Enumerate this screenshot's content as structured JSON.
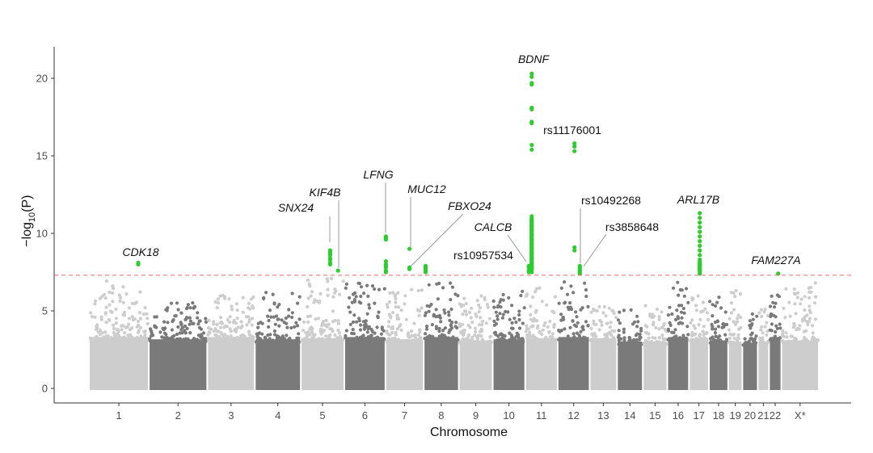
{
  "chart_data": {
    "type": "scatter",
    "subtype": "manhattan",
    "title": "",
    "xlabel": "Chromosome",
    "ylabel_main": "−log",
    "ylabel_sub": "10",
    "ylabel_tail": "(P)",
    "ylim": [
      0,
      21.5
    ],
    "yticks": [
      0,
      5,
      10,
      15,
      20
    ],
    "significance_threshold": 7.3,
    "colors": {
      "light": "#cdcdcd",
      "dark": "#7a7a7a",
      "highlight": "#2ecc2e",
      "threshold": "#ee6a6a",
      "axis": "#333333"
    },
    "chromosomes": [
      {
        "label": "1",
        "size": 249,
        "tone": "light",
        "base": 4.6,
        "max": 7.0
      },
      {
        "label": "2",
        "size": 243,
        "tone": "dark",
        "base": 4.4,
        "max": 5.6
      },
      {
        "label": "3",
        "size": 198,
        "tone": "light",
        "base": 4.6,
        "max": 6.0
      },
      {
        "label": "4",
        "size": 191,
        "tone": "dark",
        "base": 4.4,
        "max": 6.2
      },
      {
        "label": "5",
        "size": 181,
        "tone": "light",
        "base": 4.5,
        "max": 7.1
      },
      {
        "label": "6",
        "size": 171,
        "tone": "dark",
        "base": 4.6,
        "max": 6.8
      },
      {
        "label": "7",
        "size": 159,
        "tone": "light",
        "base": 4.4,
        "max": 6.5
      },
      {
        "label": "8",
        "size": 146,
        "tone": "dark",
        "base": 4.6,
        "max": 7.2
      },
      {
        "label": "9",
        "size": 141,
        "tone": "light",
        "base": 4.3,
        "max": 6.0
      },
      {
        "label": "10",
        "size": 135,
        "tone": "dark",
        "base": 4.4,
        "max": 6.4
      },
      {
        "label": "11",
        "size": 135,
        "tone": "light",
        "base": 4.5,
        "max": 6.6
      },
      {
        "label": "12",
        "size": 133,
        "tone": "dark",
        "base": 4.6,
        "max": 7.0
      },
      {
        "label": "13",
        "size": 114,
        "tone": "light",
        "base": 4.5,
        "max": 5.6
      },
      {
        "label": "14",
        "size": 107,
        "tone": "dark",
        "base": 4.2,
        "max": 5.2
      },
      {
        "label": "15",
        "size": 102,
        "tone": "light",
        "base": 4.2,
        "max": 5.4
      },
      {
        "label": "16",
        "size": 90,
        "tone": "dark",
        "base": 4.6,
        "max": 7.0
      },
      {
        "label": "17",
        "size": 83,
        "tone": "light",
        "base": 4.5,
        "max": 6.6
      },
      {
        "label": "18",
        "size": 80,
        "tone": "dark",
        "base": 4.3,
        "max": 6.0
      },
      {
        "label": "19",
        "size": 59,
        "tone": "light",
        "base": 4.2,
        "max": 6.8
      },
      {
        "label": "20",
        "size": 64,
        "tone": "dark",
        "base": 4.1,
        "max": 5.0
      },
      {
        "label": "21",
        "size": 47,
        "tone": "light",
        "base": 4.2,
        "max": 5.2
      },
      {
        "label": "22",
        "size": 51,
        "tone": "dark",
        "base": 4.6,
        "max": 7.3
      },
      {
        "label": "X*",
        "size": 156,
        "tone": "light",
        "base": 4.3,
        "max": 6.8
      }
    ],
    "hits": [
      {
        "label": "CDK18",
        "italic": true,
        "chr": "1",
        "pos": 205,
        "values": [
          8.1,
          8.0
        ]
      },
      {
        "label": "SNX24",
        "italic": true,
        "chr": "5",
        "pos": 122,
        "values": [
          8.9,
          8.8,
          8.7,
          8.6,
          8.4,
          8.3,
          8.1,
          8.0
        ]
      },
      {
        "label": "KIF4B",
        "italic": true,
        "chr": "5",
        "pos": 155,
        "values": [
          7.6
        ]
      },
      {
        "label": "LFNG",
        "italic": true,
        "chr": "7",
        "pos": 2,
        "values": [
          9.8,
          9.7,
          9.6,
          8.2,
          8.0,
          7.9,
          7.8,
          7.6,
          7.5
        ]
      },
      {
        "label": "MUC12",
        "italic": true,
        "chr": "7",
        "pos": 100,
        "values": [
          9.0,
          7.8,
          7.7
        ]
      },
      {
        "label": "FBXO24",
        "italic": true,
        "chr": "7",
        "pos": 100,
        "values": []
      },
      {
        "label": "rs10957534",
        "italic": false,
        "chr": "8",
        "pos": 8,
        "values": [
          7.9,
          7.8,
          7.7,
          7.6,
          7.5
        ]
      },
      {
        "label": "CALCB",
        "italic": true,
        "chr": "11",
        "pos": 15,
        "values": [
          7.9,
          7.8,
          7.6,
          7.5
        ]
      },
      {
        "label": "BDNF",
        "italic": true,
        "chr": "11",
        "pos": 27,
        "values": [
          20.3,
          20.1,
          19.7,
          19.6,
          18.1,
          18.0,
          17.2,
          17.1,
          15.7,
          15.4,
          11.1,
          10.8,
          10.5,
          10.2,
          9.9,
          9.6,
          9.3,
          9.0,
          8.7,
          8.4,
          8.1,
          7.8,
          7.5
        ]
      },
      {
        "label": "rs11176001",
        "italic": false,
        "chr": "12",
        "pos": 70,
        "values": [
          15.8,
          15.6,
          15.3
        ]
      },
      {
        "label": "rs10492268",
        "italic": false,
        "chr": "12",
        "pos": 70,
        "values": [
          9.1,
          8.9
        ]
      },
      {
        "label": "rs3858648",
        "italic": false,
        "chr": "12",
        "pos": 92,
        "values": [
          7.9,
          7.8,
          7.7,
          7.6,
          7.5,
          7.4
        ]
      },
      {
        "label": "ARL17B",
        "italic": true,
        "chr": "17",
        "pos": 45,
        "values": [
          11.3,
          11.0,
          10.7,
          10.4,
          10.1,
          9.8,
          9.5,
          9.2,
          8.9,
          8.6,
          8.3,
          8.0,
          7.7,
          7.4
        ]
      },
      {
        "label": "FAM227A",
        "italic": true,
        "chr": "22",
        "pos": 38,
        "values": [
          7.4
        ]
      }
    ]
  }
}
